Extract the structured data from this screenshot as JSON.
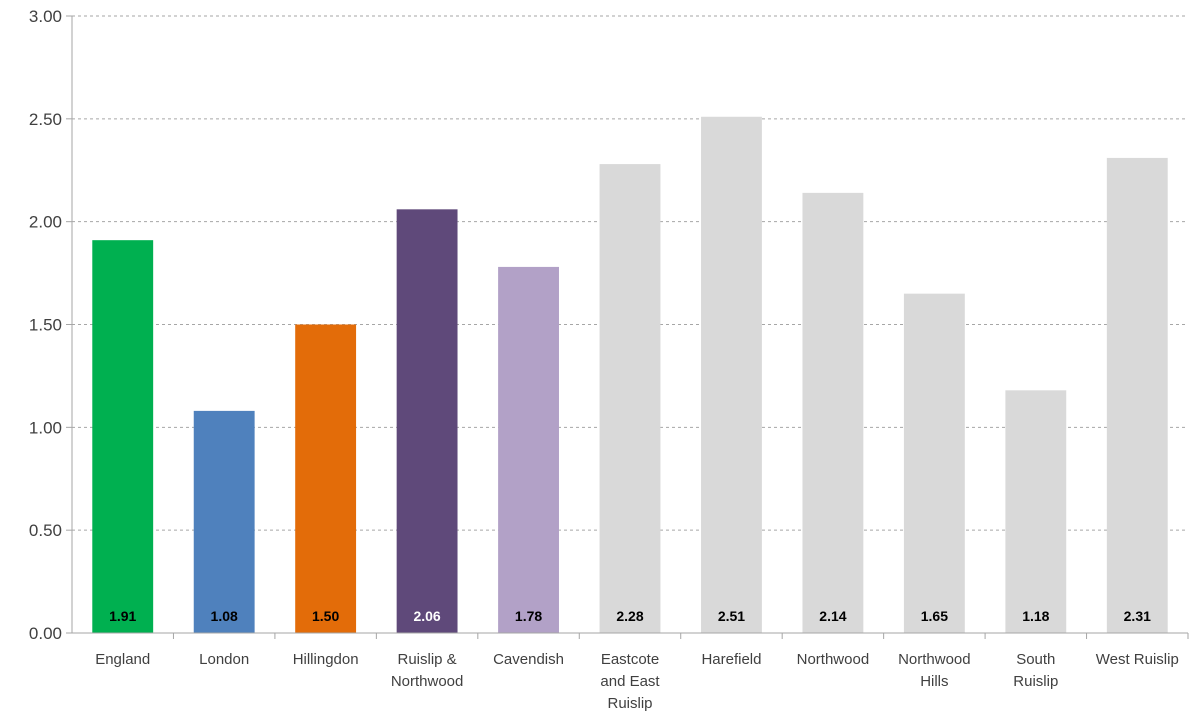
{
  "chart_data": {
    "type": "bar",
    "title": "",
    "xlabel": "",
    "ylabel": "",
    "ylim": [
      0,
      3
    ],
    "yticks": [
      "0.00",
      "0.50",
      "1.00",
      "1.50",
      "2.00",
      "2.50",
      "3.00"
    ],
    "grid": true,
    "legend": "none",
    "categories": [
      [
        "England"
      ],
      [
        "London"
      ],
      [
        "Hillingdon"
      ],
      [
        "Ruislip &",
        "Northwood"
      ],
      [
        "Cavendish"
      ],
      [
        "Eastcote",
        "and East",
        "Ruislip"
      ],
      [
        "Harefield"
      ],
      [
        "Northwood"
      ],
      [
        "Northwood",
        "Hills"
      ],
      [
        "South",
        "Ruislip"
      ],
      [
        "West Ruislip"
      ]
    ],
    "values": [
      1.91,
      1.08,
      1.5,
      2.06,
      1.78,
      2.28,
      2.51,
      2.14,
      1.65,
      1.18,
      2.31
    ],
    "data_labels": [
      "1.91",
      "1.08",
      "1.50",
      "2.06",
      "1.78",
      "2.28",
      "2.51",
      "2.14",
      "1.65",
      "1.18",
      "2.31"
    ],
    "colors": [
      "#00b050",
      "#4f81bd",
      "#e36c09",
      "#5f497a",
      "#b2a1c7",
      "#d9d9d9",
      "#d9d9d9",
      "#d9d9d9",
      "#d9d9d9",
      "#d9d9d9",
      "#d9d9d9"
    ],
    "label_colors": [
      "#000000",
      "#000000",
      "#000000",
      "#ffffff",
      "#000000",
      "#000000",
      "#000000",
      "#000000",
      "#000000",
      "#000000",
      "#000000"
    ],
    "gridline_color": "#a6a6a6",
    "axis_color": "#a6a6a6"
  }
}
